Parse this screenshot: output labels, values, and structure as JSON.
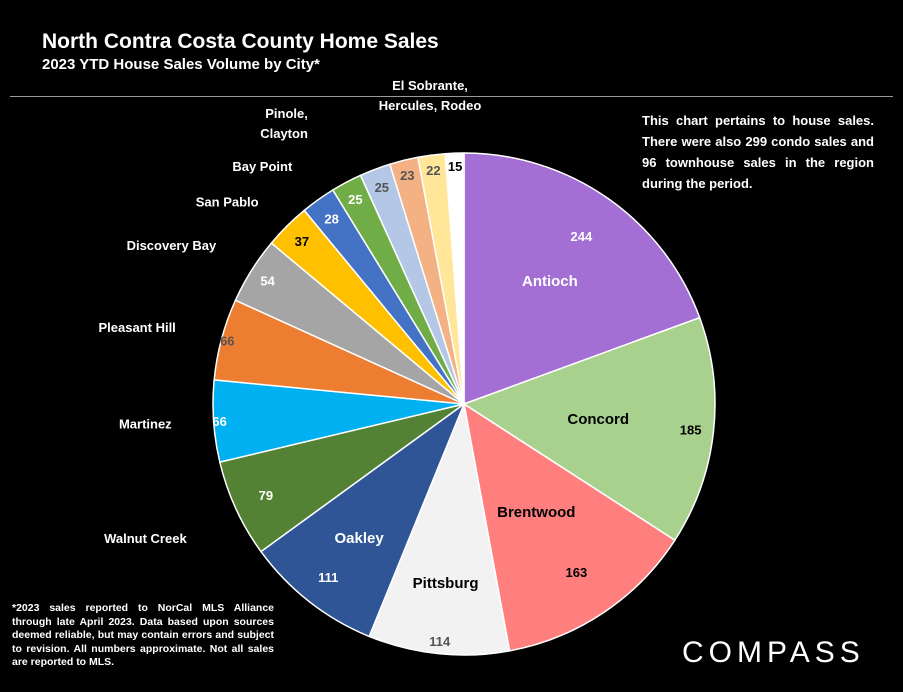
{
  "header": {
    "title": "North Contra Costa County Home Sales",
    "subtitle": "2023 YTD House Sales Volume by City*"
  },
  "note": "This chart pertains to house sales. There were also 299 condo sales and 96 townhouse sales in the region during the period.",
  "footnote": "*2023 sales reported to NorCal MLS Alliance through late April 2023. Data based upon sources deemed reliable, but may contain errors and subject to revision. All numbers approximate. Not all sales are reported to MLS.",
  "brand": "COMPASS",
  "chart_data": {
    "type": "pie",
    "title": "2023 YTD House Sales Volume by City*",
    "start": "12 o'clock",
    "direction": "clockwise",
    "slices": [
      {
        "label": "Antioch",
        "value": 244,
        "color": "#a46fd5"
      },
      {
        "label": "Concord",
        "value": 185,
        "color": "#a9d18e"
      },
      {
        "label": "Brentwood",
        "value": 163,
        "color": "#ff7f7f"
      },
      {
        "label": "Pittsburg",
        "value": 114,
        "color": "#f2f2f2"
      },
      {
        "label": "Oakley",
        "value": 111,
        "color": "#2f5597"
      },
      {
        "label": "Walnut Creek",
        "value": 79,
        "color": "#548235"
      },
      {
        "label": "Martinez",
        "value": 66,
        "color": "#00b0f0"
      },
      {
        "label": "Pleasant Hill",
        "value": 66,
        "color": "#ed7d31"
      },
      {
        "label": "Discovery Bay",
        "value": 54,
        "color": "#a5a5a5"
      },
      {
        "label": "San Pablo",
        "value": 37,
        "color": "#ffc000"
      },
      {
        "label": "Bay Point",
        "value": 28,
        "color": "#4472c4"
      },
      {
        "label": "Pinole, Clayton",
        "value": 25,
        "color": "#70ad47",
        "labelLines": [
          "Pinole,",
          "Clayton"
        ]
      },
      {
        "label": "",
        "value": 25,
        "color": "#b4c7e7"
      },
      {
        "label": "El Sobrante, Hercules, Rodeo",
        "value": 23,
        "color": "#f4b183",
        "labelLines": [
          "El Sobrante,",
          "Hercules, Rodeo"
        ]
      },
      {
        "label": "",
        "value": 22,
        "color": "#ffe699"
      },
      {
        "label": "",
        "value": 15,
        "color": "#ffffff"
      }
    ]
  }
}
